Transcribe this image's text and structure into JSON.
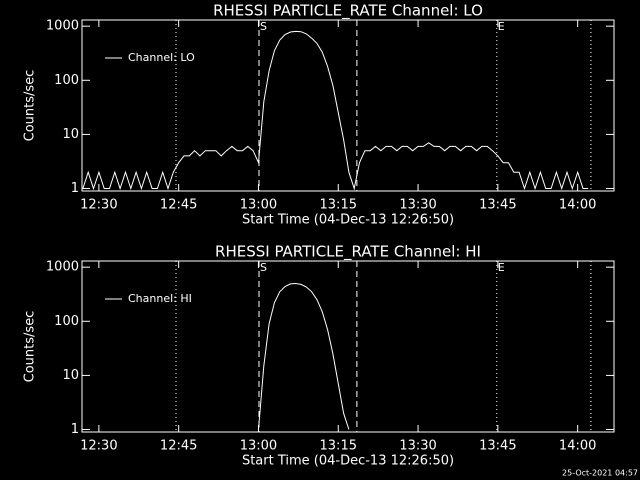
{
  "chart_data": [
    {
      "type": "line",
      "title": "RHESSI PARTICLE_RATE Channel: LO",
      "xlabel": "Start Time (04-Dec-13 12:26:50)",
      "ylabel": "Counts/sec",
      "log_y": true,
      "x": [
        27,
        28,
        29,
        30,
        31,
        32,
        33,
        34,
        35,
        36,
        37,
        38,
        39,
        40,
        41,
        42,
        43,
        44,
        45,
        46,
        47,
        48,
        49,
        50,
        51,
        52,
        53,
        54,
        55,
        56,
        57,
        58,
        59,
        60,
        61,
        62,
        63,
        64,
        65,
        66,
        67,
        68,
        69,
        70,
        71,
        72,
        73,
        74,
        75,
        76,
        77,
        78,
        79,
        80,
        81,
        82,
        83,
        84,
        85,
        86,
        87,
        88,
        89,
        90,
        91,
        92,
        93,
        94,
        95,
        96,
        97,
        98,
        99,
        100,
        101,
        102,
        103,
        104,
        105,
        106,
        107,
        108,
        109,
        110,
        111,
        112,
        113,
        114,
        115,
        116,
        117,
        118,
        119,
        120,
        121,
        122
      ],
      "series": [
        {
          "name": "Channel: LO",
          "color": "#ffffff",
          "values": [
            1,
            2,
            1,
            2,
            1,
            1,
            2,
            1,
            2,
            1,
            2,
            1,
            2,
            1,
            1,
            2,
            1,
            2,
            3,
            4,
            4,
            5,
            4,
            5,
            5,
            5,
            4,
            5,
            6,
            5,
            5,
            6,
            5,
            3,
            40,
            150,
            350,
            550,
            700,
            780,
            800,
            790,
            720,
            600,
            480,
            330,
            180,
            80,
            25,
            8,
            2,
            1,
            3,
            5,
            5,
            6,
            5,
            6,
            6,
            5,
            6,
            6,
            5,
            6,
            6,
            7,
            6,
            6,
            5,
            6,
            6,
            5,
            6,
            6,
            5,
            6,
            6,
            5,
            4,
            3,
            3,
            2,
            2,
            1,
            2,
            1,
            2,
            1,
            1,
            2,
            1,
            2,
            1,
            2,
            1,
            1
          ]
        }
      ],
      "xlim": [
        26.83,
        126.83
      ],
      "xticks": [
        {
          "value": 30,
          "label": "12:30"
        },
        {
          "value": 45,
          "label": "12:45"
        },
        {
          "value": 60,
          "label": "13:00"
        },
        {
          "value": 75,
          "label": "13:15"
        },
        {
          "value": 90,
          "label": "13:30"
        },
        {
          "value": 105,
          "label": "13:45"
        },
        {
          "value": 120,
          "label": "14:00"
        }
      ],
      "ylim": [
        0.9,
        1300
      ],
      "yticks": [
        1,
        10,
        100,
        1000
      ],
      "vlines": [
        {
          "x": 44.5,
          "style": "dotted"
        },
        {
          "x": 60.1,
          "style": "dashed",
          "label": "S"
        },
        {
          "x": 78.5,
          "style": "dashed"
        },
        {
          "x": 104.8,
          "style": "dotted",
          "label": "E"
        },
        {
          "x": 122.5,
          "style": "dotted"
        }
      ]
    },
    {
      "type": "line",
      "title": "RHESSI PARTICLE_RATE Channel: HI",
      "xlabel": "Start Time (04-Dec-13 12:26:50)",
      "ylabel": "Counts/sec",
      "log_y": true,
      "x": [
        60,
        61,
        62,
        63,
        64,
        65,
        66,
        67,
        68,
        69,
        70,
        71,
        72,
        73,
        74,
        75,
        76,
        77
      ],
      "series": [
        {
          "name": "Channel: HI",
          "color": "#ffffff",
          "values": [
            1,
            15,
            90,
            220,
            350,
            440,
            490,
            500,
            480,
            430,
            350,
            250,
            150,
            70,
            25,
            7,
            2,
            1
          ]
        }
      ],
      "xlim": [
        26.83,
        126.83
      ],
      "xticks": [
        {
          "value": 30,
          "label": "12:30"
        },
        {
          "value": 45,
          "label": "12:45"
        },
        {
          "value": 60,
          "label": "13:00"
        },
        {
          "value": 75,
          "label": "13:15"
        },
        {
          "value": 90,
          "label": "13:30"
        },
        {
          "value": 105,
          "label": "13:45"
        },
        {
          "value": 120,
          "label": "14:00"
        }
      ],
      "ylim": [
        0.9,
        1300
      ],
      "yticks": [
        1,
        10,
        100,
        1000
      ],
      "vlines": [
        {
          "x": 44.5,
          "style": "dotted"
        },
        {
          "x": 60.1,
          "style": "dashed",
          "label": "S"
        },
        {
          "x": 78.5,
          "style": "dashed"
        },
        {
          "x": 104.8,
          "style": "dotted",
          "label": "E"
        },
        {
          "x": 122.5,
          "style": "dotted"
        }
      ]
    }
  ],
  "footer": "25-Oct-2021 04:57"
}
